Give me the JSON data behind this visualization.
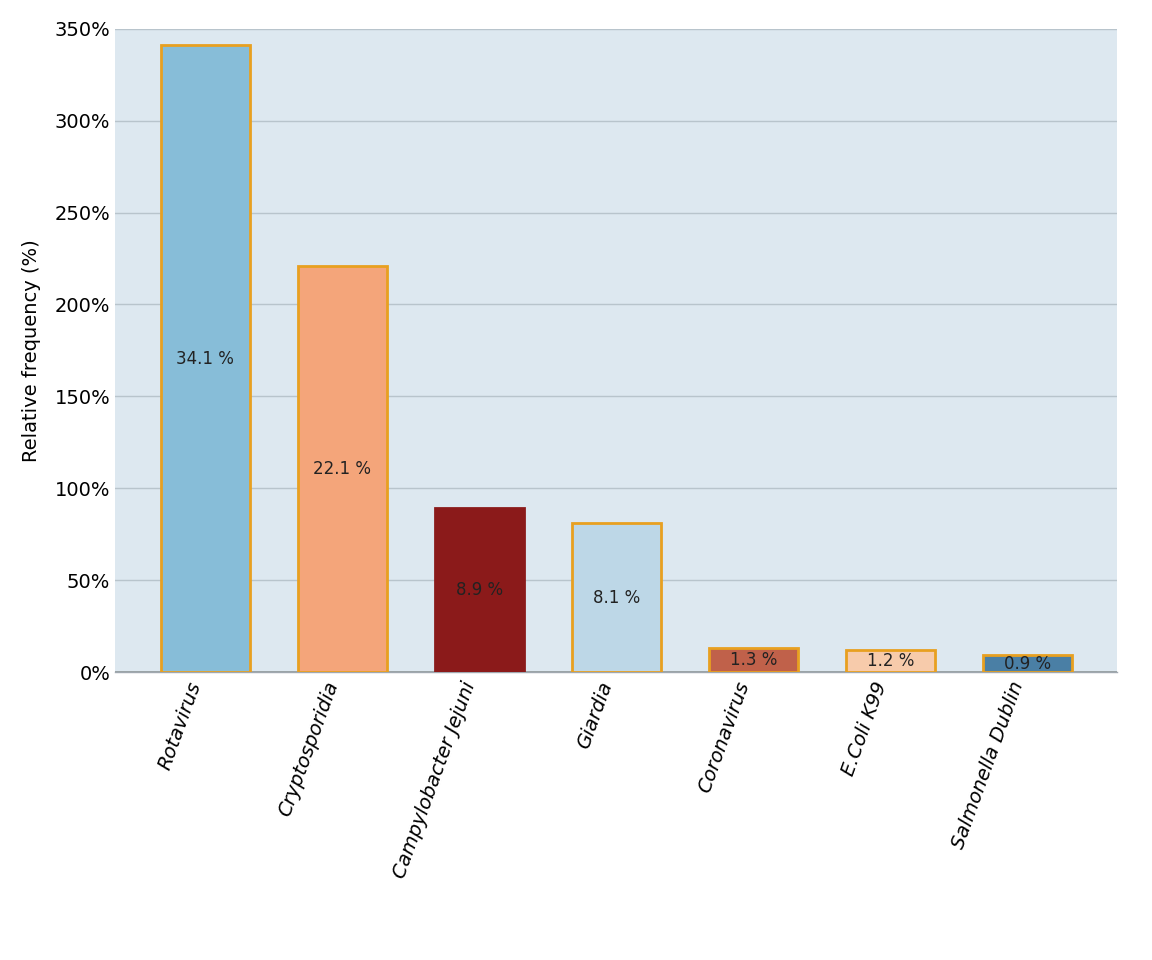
{
  "categories": [
    "Rotavirus",
    "Cryptosporidia",
    "Campylobacter Jejuni",
    "Giardia",
    "Coronavirus",
    "E.Coli K99",
    "Salmonella Dublin"
  ],
  "values": [
    34.1,
    22.1,
    8.9,
    8.1,
    1.3,
    1.2,
    0.9
  ],
  "bar_heights": [
    341,
    221,
    89,
    81,
    13,
    12,
    9
  ],
  "bar_fill_colors": [
    "#87BDD8",
    "#F4A57A",
    "#8B1A1A",
    "#BDD7E7",
    "#C0614A",
    "#F7CBAB",
    "#4A7FA5"
  ],
  "bar_edge_colors": [
    "#E8A020",
    "#E8A020",
    "#8B1A1A",
    "#E8A020",
    "#E8A020",
    "#E8A020",
    "#E8A020"
  ],
  "ylabel": "Relative frequency (%)",
  "ylim": [
    0,
    350
  ],
  "yticks": [
    0,
    50,
    100,
    150,
    200,
    250,
    300,
    350
  ],
  "ytick_labels": [
    "0%",
    "50%",
    "100%",
    "150%",
    "200%",
    "250%",
    "300%",
    "350%"
  ],
  "plot_bg_color": "#DDE8F0",
  "figure_bg_color": "#FFFFFF",
  "grid_color": "#B8C4CC",
  "label_fontsize": 14,
  "tick_fontsize": 14,
  "value_label_fontsize": 12,
  "xlabel_rotation": 70
}
